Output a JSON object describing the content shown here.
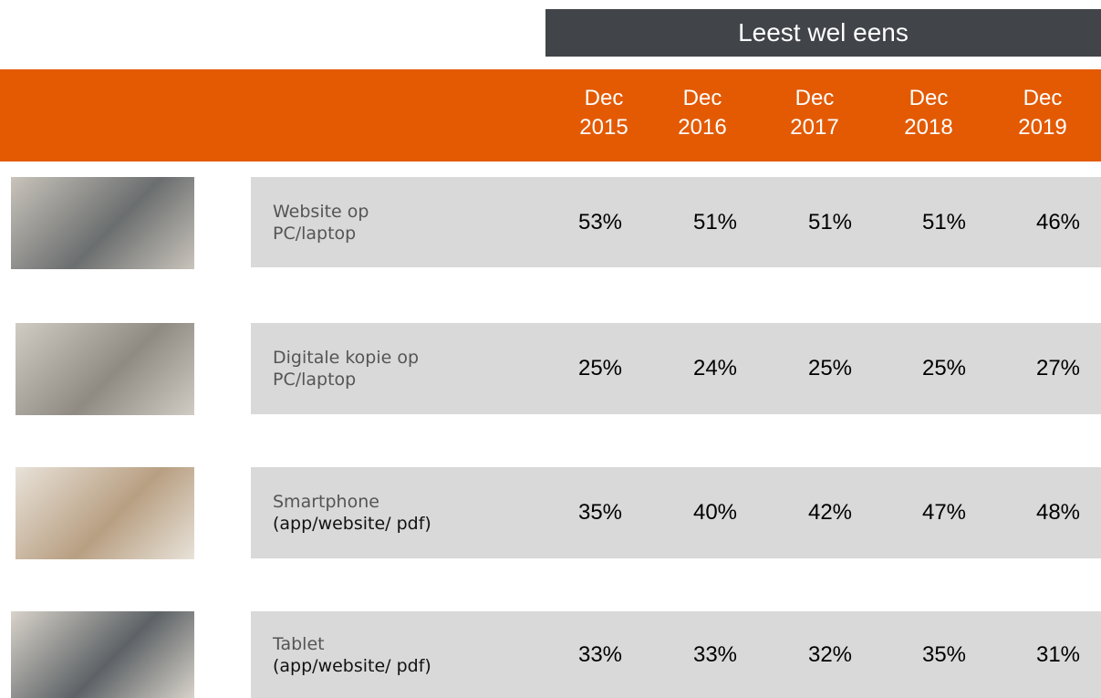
{
  "table": {
    "group_header": "Leest wel eens",
    "columns": [
      "Dec 2015",
      "Dec 2016",
      "Dec 2017",
      "Dec 2018",
      "Dec 2019"
    ],
    "rows": [
      {
        "label": [
          "Website op",
          "PC/laptop"
        ],
        "values": [
          "53%",
          "51%",
          "51%",
          "51%",
          "46%"
        ]
      },
      {
        "label": [
          "Digitale kopie op",
          "PC/laptop"
        ],
        "values": [
          "25%",
          "24%",
          "25%",
          "25%",
          "27%"
        ]
      },
      {
        "label": [
          "Smartphone",
          "(app/website/ pdf)"
        ],
        "values": [
          "35%",
          "40%",
          "42%",
          "47%",
          "48%"
        ]
      },
      {
        "label": [
          "Tablet",
          "(app/website/ pdf)"
        ],
        "values": [
          "33%",
          "33%",
          "32%",
          "35%",
          "31%"
        ]
      }
    ]
  }
}
